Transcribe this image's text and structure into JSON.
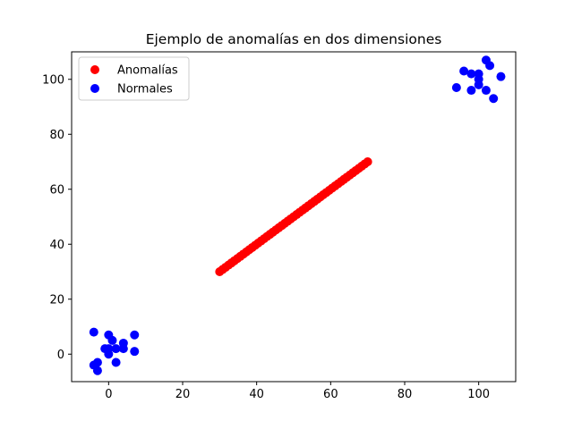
{
  "chart_data": {
    "type": "scatter",
    "title": "Ejemplo de anomalías en dos dimensiones",
    "xlabel": "",
    "ylabel": "",
    "xlim": [
      -10,
      110
    ],
    "ylim": [
      -10,
      110
    ],
    "xticks": [
      0,
      20,
      40,
      60,
      80,
      100
    ],
    "yticks": [
      0,
      20,
      40,
      60,
      80,
      100
    ],
    "grid": false,
    "legend_position": "top-left",
    "series": [
      {
        "name": "Anomalías",
        "color": "#ff0000",
        "points": [
          [
            30,
            30
          ],
          [
            30.8,
            30.8
          ],
          [
            31.6,
            31.6
          ],
          [
            32.4,
            32.4
          ],
          [
            33.2,
            33.2
          ],
          [
            34,
            34
          ],
          [
            34.8,
            34.8
          ],
          [
            35.6,
            35.6
          ],
          [
            36.4,
            36.4
          ],
          [
            37.2,
            37.2
          ],
          [
            38,
            38
          ],
          [
            38.8,
            38.8
          ],
          [
            39.6,
            39.6
          ],
          [
            40.4,
            40.4
          ],
          [
            41.2,
            41.2
          ],
          [
            42,
            42
          ],
          [
            42.8,
            42.8
          ],
          [
            43.6,
            43.6
          ],
          [
            44.4,
            44.4
          ],
          [
            45.2,
            45.2
          ],
          [
            46,
            46
          ],
          [
            46.8,
            46.8
          ],
          [
            47.6,
            47.6
          ],
          [
            48.4,
            48.4
          ],
          [
            49.2,
            49.2
          ],
          [
            50,
            50
          ],
          [
            50.8,
            50.8
          ],
          [
            51.6,
            51.6
          ],
          [
            52.4,
            52.4
          ],
          [
            53.2,
            53.2
          ],
          [
            54,
            54
          ],
          [
            54.8,
            54.8
          ],
          [
            55.6,
            55.6
          ],
          [
            56.4,
            56.4
          ],
          [
            57.2,
            57.2
          ],
          [
            58,
            58
          ],
          [
            58.8,
            58.8
          ],
          [
            59.6,
            59.6
          ],
          [
            60.4,
            60.4
          ],
          [
            61.2,
            61.2
          ],
          [
            62,
            62
          ],
          [
            62.8,
            62.8
          ],
          [
            63.6,
            63.6
          ],
          [
            64.4,
            64.4
          ],
          [
            65.2,
            65.2
          ],
          [
            66,
            66
          ],
          [
            66.8,
            66.8
          ],
          [
            67.6,
            67.6
          ],
          [
            68.4,
            68.4
          ],
          [
            69.2,
            69.2
          ],
          [
            70,
            70
          ]
        ]
      },
      {
        "name": "Normales",
        "color": "#0000ff",
        "points": [
          [
            -4,
            8
          ],
          [
            0,
            7
          ],
          [
            7,
            7
          ],
          [
            1,
            5
          ],
          [
            4,
            4
          ],
          [
            -1,
            2
          ],
          [
            0,
            2
          ],
          [
            2,
            2
          ],
          [
            4,
            2
          ],
          [
            0,
            0
          ],
          [
            7,
            1
          ],
          [
            -4,
            -4
          ],
          [
            -3,
            -3
          ],
          [
            2,
            -3
          ],
          [
            -3,
            -6
          ],
          [
            102,
            107
          ],
          [
            103,
            105
          ],
          [
            96,
            103
          ],
          [
            98,
            102
          ],
          [
            100,
            102
          ],
          [
            100,
            100
          ],
          [
            106,
            101
          ],
          [
            94,
            97
          ],
          [
            98,
            96
          ],
          [
            102,
            96
          ],
          [
            100,
            98
          ],
          [
            104,
            93
          ]
        ]
      }
    ]
  }
}
